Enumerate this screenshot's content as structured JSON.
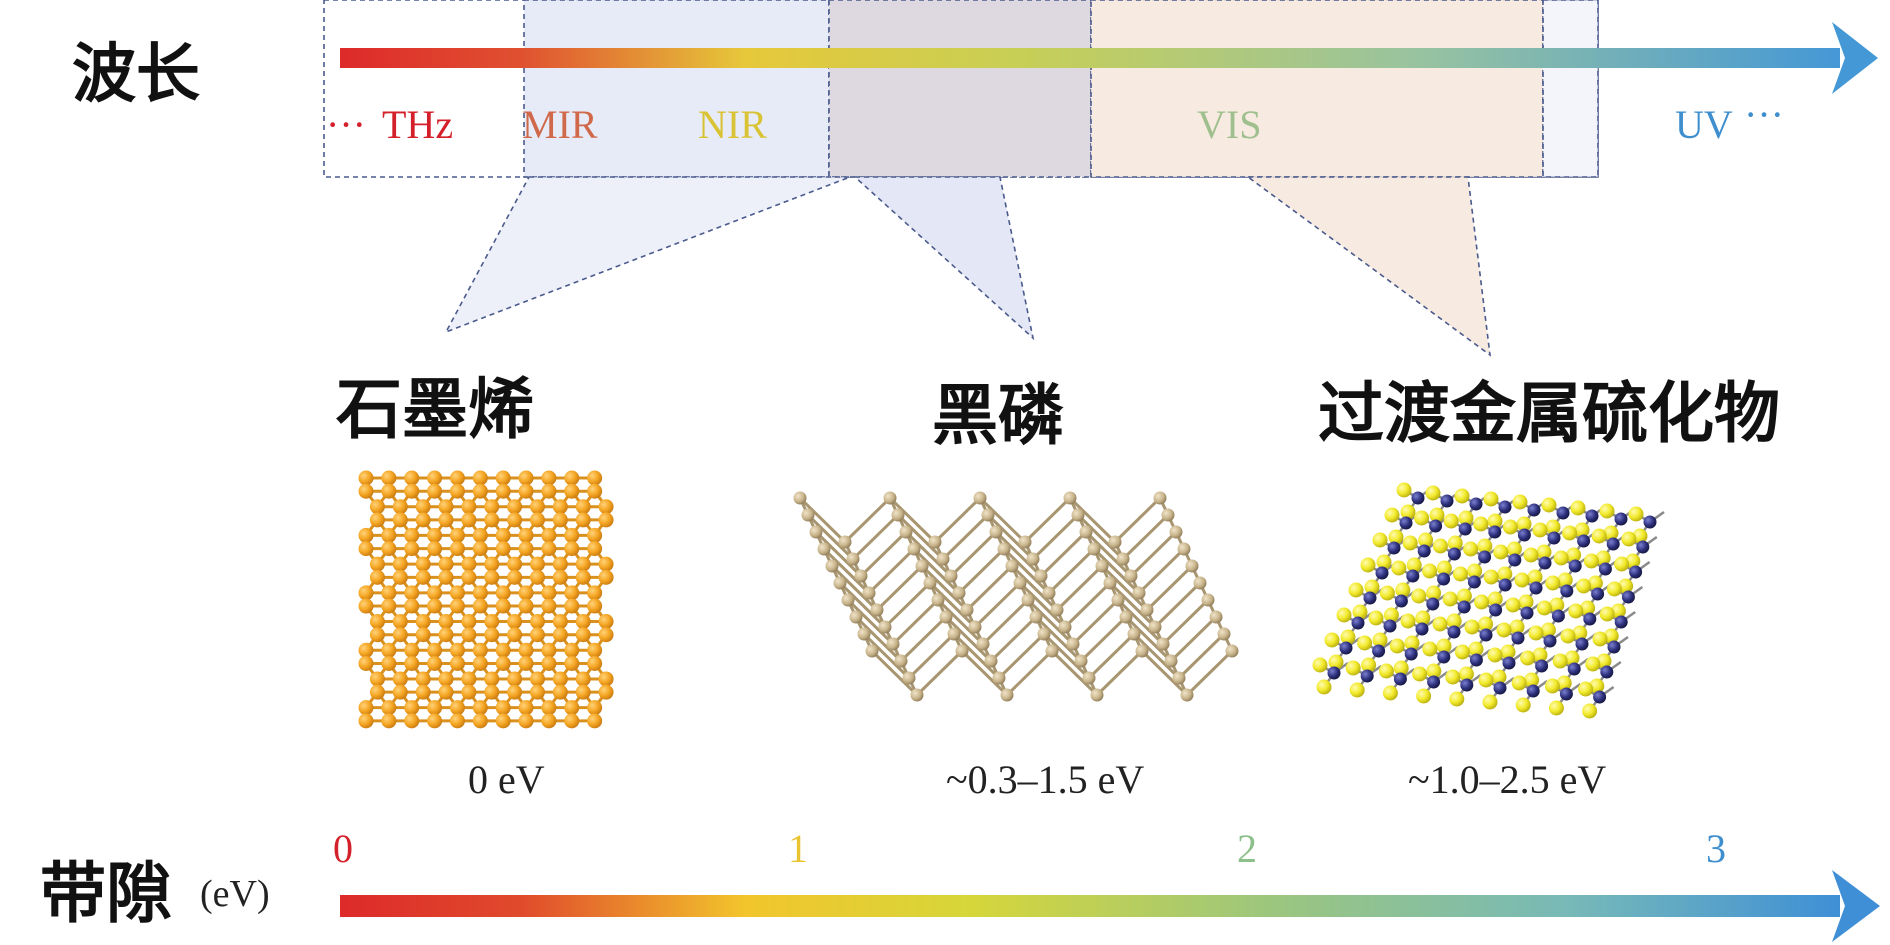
{
  "wavelength_axis": {
    "title": "波长",
    "bands": [
      {
        "label": "THz",
        "color": "#d4202a",
        "prefix": "···"
      },
      {
        "label": "MIR",
        "color": "#d0684a"
      },
      {
        "label": "NIR",
        "color": "#d9c233"
      },
      {
        "label": "VIS",
        "color": "#9fc08e"
      },
      {
        "label": "UV",
        "color": "#3f8fcf",
        "suffix": "···"
      }
    ],
    "gradient_colors": [
      "#dd2a2a",
      "#e6c83a",
      "#c8cf55",
      "#98c3a0",
      "#4598d6"
    ]
  },
  "materials": [
    {
      "name": "石墨烯",
      "bandgap": "0 eV",
      "atom_color": "#f5a623"
    },
    {
      "name": "黑磷",
      "bandgap": "~0.3–1.5 eV",
      "atom_color": "#c9b58c"
    },
    {
      "name": "过渡金属硫化物",
      "bandgap": "~1.0–2.5 eV",
      "atom_colors": [
        "#f2ea2a",
        "#2c2f7a"
      ]
    }
  ],
  "bandgap_axis": {
    "title": "带隙",
    "unit": "(eV)",
    "ticks": [
      {
        "label": "0",
        "color": "#d4202a"
      },
      {
        "label": "1",
        "color": "#e8c530"
      },
      {
        "label": "2",
        "color": "#8cc08a"
      },
      {
        "label": "3",
        "color": "#3f8fcf"
      }
    ]
  },
  "region_colors": {
    "graphene_region": "#e3e7f6",
    "bp_region": "#ded9e0",
    "tmd_region": "#f6e6da",
    "outline": "#4a5a8c"
  }
}
